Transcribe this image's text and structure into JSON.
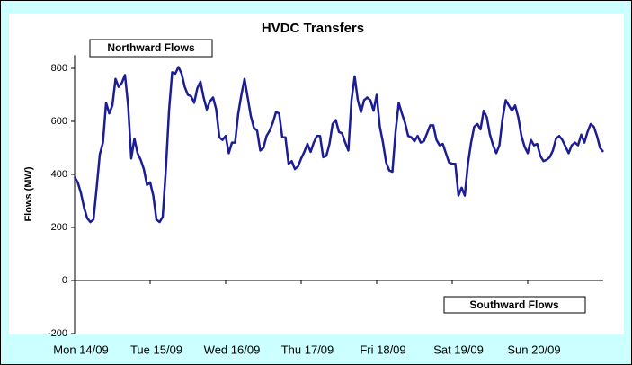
{
  "chart_data": {
    "type": "line",
    "title": "HVDC Transfers",
    "y_label": "Flows (MW)",
    "annotations": [
      "Northward Flows",
      "Southward Flows"
    ],
    "x": [
      0,
      1,
      2,
      3,
      4,
      5,
      6,
      7,
      8,
      9,
      10,
      11,
      12,
      13,
      14,
      15,
      16,
      17,
      18,
      19,
      20,
      21,
      22,
      23,
      24,
      25,
      26,
      27,
      28,
      29,
      30,
      31,
      32,
      33,
      34,
      35,
      36,
      37,
      38,
      39,
      40,
      41,
      42,
      43,
      44,
      45,
      46,
      47,
      48,
      49,
      50,
      51,
      52,
      53,
      54,
      55,
      56,
      57,
      58,
      59,
      60,
      61,
      62,
      63,
      64,
      65,
      66,
      67,
      68,
      69,
      70,
      71,
      72,
      73,
      74,
      75,
      76,
      77,
      78,
      79,
      80,
      81,
      82,
      83,
      84,
      85,
      86,
      87,
      88,
      89,
      90,
      91,
      92,
      93,
      94,
      95,
      96,
      97,
      98,
      99,
      100,
      101,
      102,
      103,
      104,
      105,
      106,
      107,
      108,
      109,
      110,
      111,
      112,
      113,
      114,
      115,
      116,
      117,
      118,
      119,
      120,
      121,
      122,
      123,
      124,
      125,
      126,
      127,
      128,
      129,
      130,
      131,
      132,
      133,
      134,
      135,
      136,
      137,
      138,
      139,
      140,
      141,
      142,
      143,
      144,
      145,
      146,
      147,
      148,
      149,
      150,
      151,
      152,
      153,
      154,
      155,
      156,
      157,
      158,
      159,
      160,
      161,
      162,
      163,
      164,
      165,
      166,
      167,
      168
    ],
    "series": [
      {
        "name": "Flows",
        "color": "#1c1c96",
        "values": [
          390,
          370,
          330,
          275,
          235,
          220,
          230,
          350,
          475,
          520,
          670,
          630,
          660,
          760,
          730,
          745,
          775,
          660,
          460,
          535,
          480,
          455,
          420,
          360,
          370,
          320,
          230,
          220,
          240,
          420,
          640,
          785,
          780,
          805,
          780,
          730,
          700,
          695,
          670,
          725,
          750,
          690,
          645,
          675,
          690,
          645,
          540,
          530,
          545,
          480,
          520,
          520,
          630,
          700,
          760,
          690,
          620,
          575,
          565,
          490,
          500,
          545,
          565,
          595,
          635,
          630,
          540,
          540,
          440,
          450,
          420,
          430,
          460,
          485,
          515,
          485,
          520,
          545,
          545,
          465,
          470,
          515,
          590,
          605,
          560,
          555,
          520,
          490,
          680,
          770,
          680,
          635,
          680,
          690,
          680,
          640,
          700,
          580,
          520,
          445,
          415,
          410,
          560,
          670,
          630,
          595,
          545,
          540,
          525,
          545,
          520,
          525,
          555,
          585,
          585,
          530,
          510,
          515,
          480,
          445,
          440,
          440,
          320,
          350,
          320,
          440,
          520,
          580,
          590,
          570,
          640,
          615,
          550,
          510,
          480,
          510,
          610,
          680,
          660,
          640,
          660,
          615,
          545,
          505,
          480,
          530,
          510,
          515,
          470,
          450,
          455,
          465,
          490,
          535,
          545,
          530,
          505,
          480,
          510,
          520,
          510,
          550,
          520,
          560,
          590,
          580,
          545,
          500,
          485
        ]
      }
    ],
    "xlim": [
      0,
      168
    ],
    "xticks": [
      {
        "value": 0,
        "label": "Mon 14/09"
      },
      {
        "value": 24,
        "label": "Tue 15/09"
      },
      {
        "value": 48,
        "label": "Wed 16/09"
      },
      {
        "value": 72,
        "label": "Thu 17/09"
      },
      {
        "value": 96,
        "label": "Fri 18/09"
      },
      {
        "value": 120,
        "label": "Sat 19/09"
      },
      {
        "value": 144,
        "label": "Sun 20/09"
      }
    ],
    "ylim": [
      -200,
      850
    ],
    "yticks": [
      -200,
      0,
      200,
      400,
      600,
      800
    ],
    "grid": false
  }
}
